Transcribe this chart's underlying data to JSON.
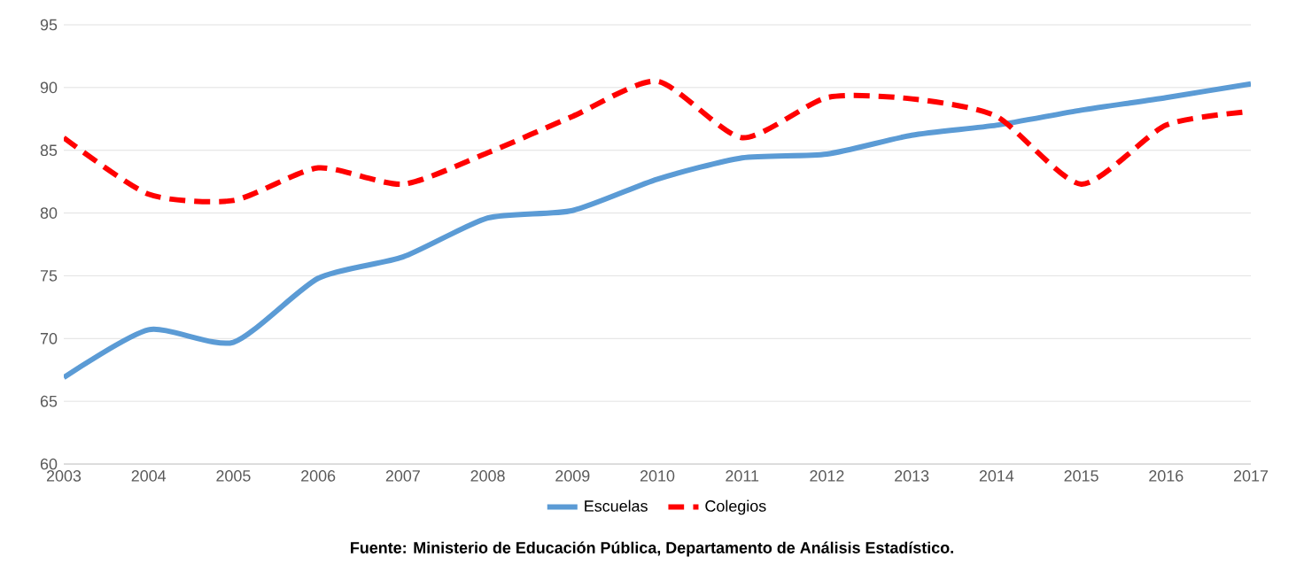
{
  "chart_data": {
    "type": "line",
    "categories": [
      "2003",
      "2004",
      "2005",
      "2006",
      "2007",
      "2008",
      "2009",
      "2010",
      "2011",
      "2012",
      "2013",
      "2014",
      "2015",
      "2016",
      "2017"
    ],
    "series": [
      {
        "name": "Escuelas",
        "color": "#5b9bd5",
        "line_style": "solid",
        "values": [
          66.9,
          70.7,
          69.7,
          74.8,
          76.5,
          79.6,
          80.2,
          82.7,
          84.4,
          84.7,
          86.2,
          87.0,
          88.2,
          89.2,
          90.3
        ]
      },
      {
        "name": "Colegios",
        "color": "#ff0000",
        "line_style": "dashed",
        "values": [
          86.0,
          81.5,
          81.0,
          83.6,
          82.3,
          84.8,
          87.7,
          90.5,
          86.0,
          89.2,
          89.1,
          87.7,
          82.3,
          87.0,
          88.1
        ]
      }
    ],
    "ylim": [
      60,
      95
    ],
    "yticks": [
      60,
      65,
      70,
      75,
      80,
      85,
      90,
      95
    ],
    "grid": "y",
    "legend": "bottom",
    "marker": "none",
    "annotations": [
      "Fuente: Ministerio de Educación Pública, Departamento de Análisis Estadístico."
    ]
  }
}
